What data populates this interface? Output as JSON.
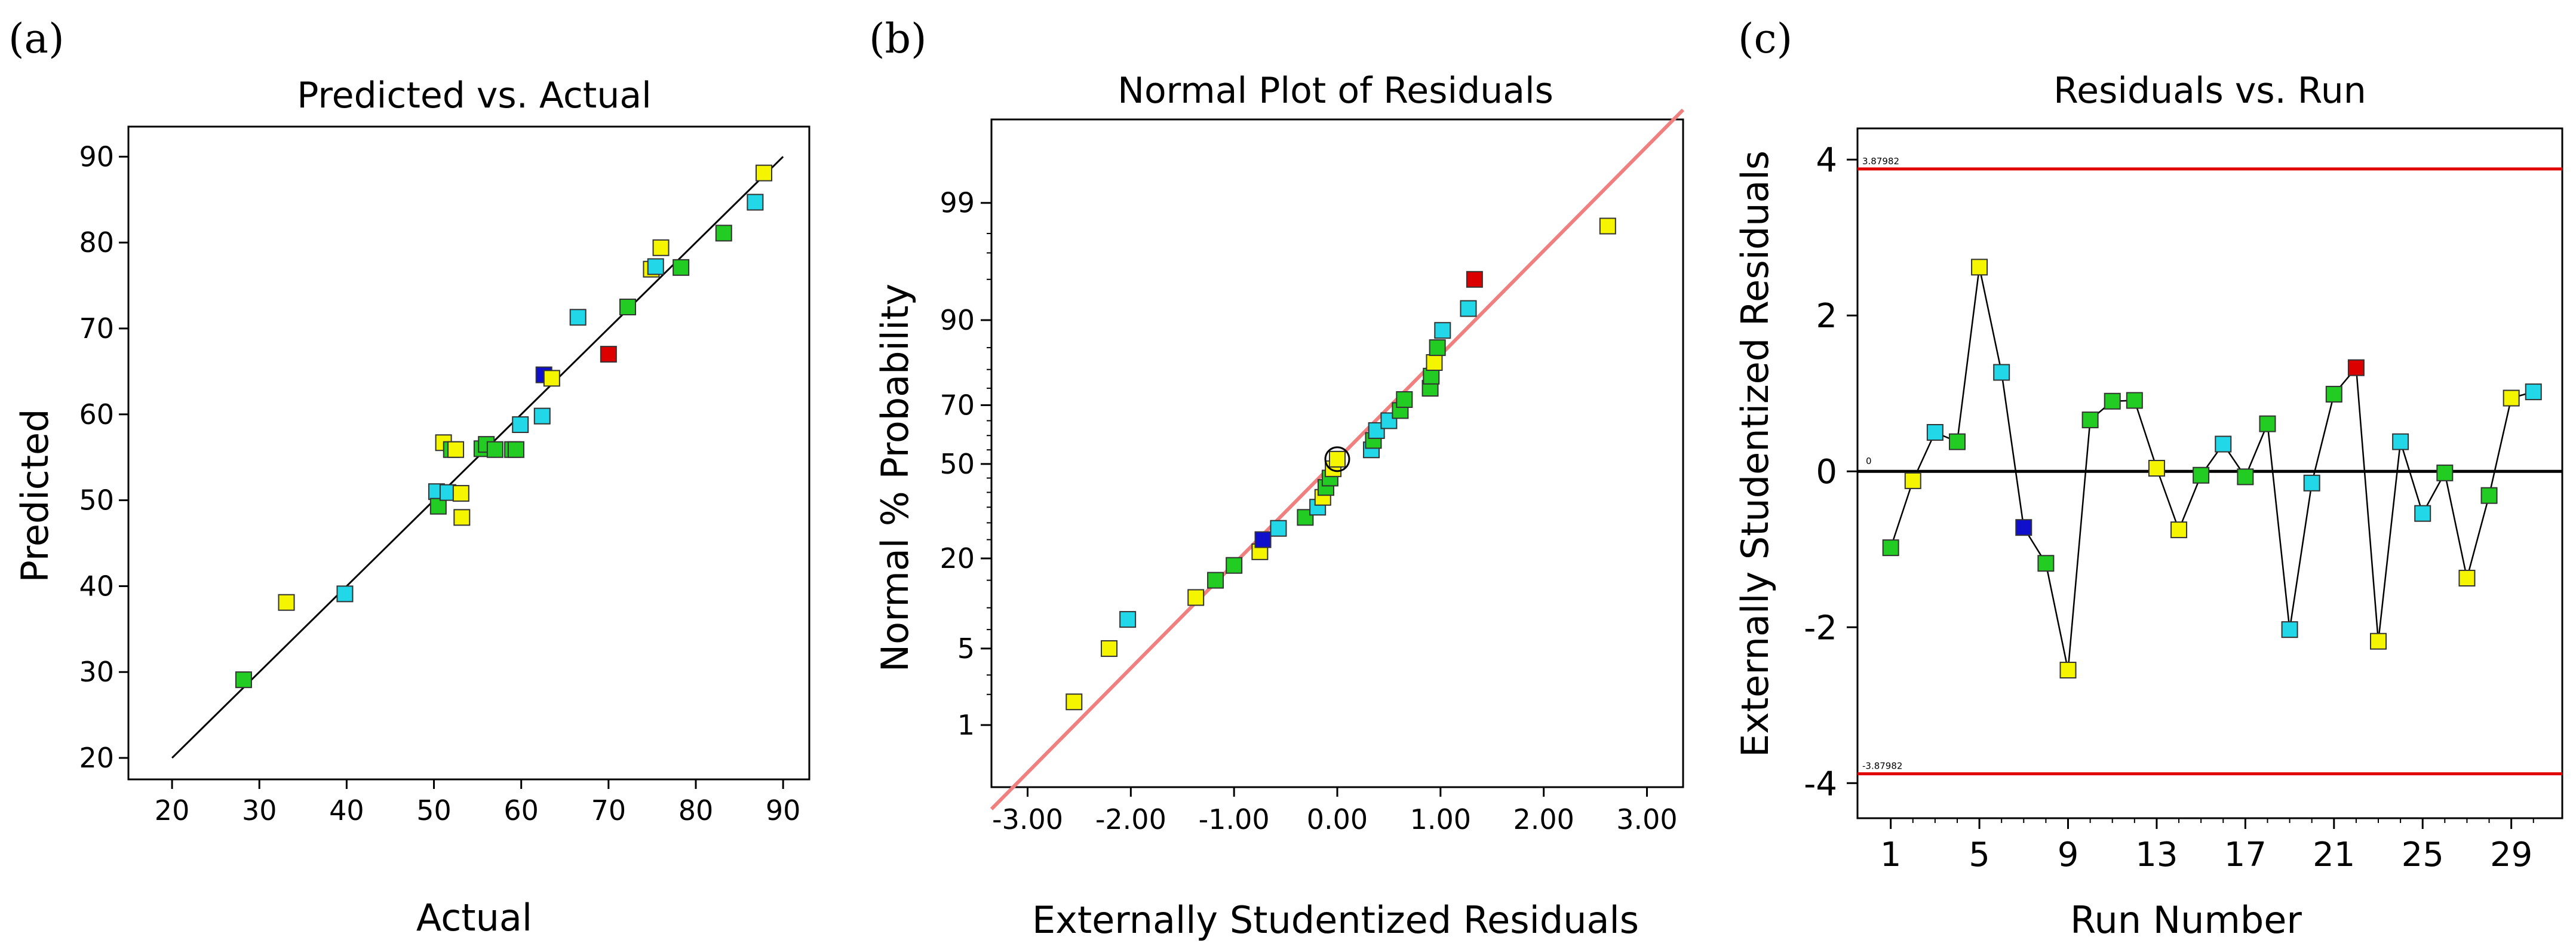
{
  "figure": {
    "panel_a_letter": "(a)",
    "panel_b_letter": "(b)",
    "panel_c_letter": "(c)"
  },
  "colors": {
    "yellow": "#f5f500",
    "cyan": "#22d8e8",
    "green": "#22cc22",
    "red": "#dd0000",
    "blue": "#1010cc",
    "fit_line_b": "#f08080",
    "limit_line_c": "#e00000"
  },
  "chart_data": [
    {
      "id": "a",
      "type": "scatter",
      "title": "Predicted vs. Actual",
      "xlabel": "Actual",
      "ylabel": "Predicted",
      "xlim": [
        15,
        93
      ],
      "ylim": [
        17.5,
        93.5
      ],
      "xticks": [
        20,
        30,
        40,
        50,
        60,
        70,
        80,
        90
      ],
      "yticks": [
        20,
        30,
        40,
        50,
        60,
        70,
        80,
        90
      ],
      "reference_line": [
        [
          20,
          20
        ],
        [
          90,
          90
        ]
      ],
      "points": [
        {
          "x": 28.2,
          "y": 29.1,
          "c": "green"
        },
        {
          "x": 33.1,
          "y": 38.1,
          "c": "yellow"
        },
        {
          "x": 39.8,
          "y": 39.1,
          "c": "cyan"
        },
        {
          "x": 50.3,
          "y": 51.0,
          "c": "cyan"
        },
        {
          "x": 50.5,
          "y": 49.3,
          "c": "green"
        },
        {
          "x": 51.1,
          "y": 56.7,
          "c": "yellow"
        },
        {
          "x": 51.6,
          "y": 50.9,
          "c": "cyan"
        },
        {
          "x": 52.0,
          "y": 55.9,
          "c": "green"
        },
        {
          "x": 52.5,
          "y": 55.9,
          "c": "yellow"
        },
        {
          "x": 53.1,
          "y": 50.8,
          "c": "yellow"
        },
        {
          "x": 53.2,
          "y": 48.0,
          "c": "yellow"
        },
        {
          "x": 55.5,
          "y": 56.0,
          "c": "green"
        },
        {
          "x": 56.0,
          "y": 56.5,
          "c": "green"
        },
        {
          "x": 57.0,
          "y": 55.9,
          "c": "green"
        },
        {
          "x": 59.0,
          "y": 55.9,
          "c": "green"
        },
        {
          "x": 59.4,
          "y": 55.9,
          "c": "green"
        },
        {
          "x": 59.9,
          "y": 58.8,
          "c": "cyan"
        },
        {
          "x": 62.4,
          "y": 59.8,
          "c": "cyan"
        },
        {
          "x": 62.6,
          "y": 64.6,
          "c": "blue"
        },
        {
          "x": 63.5,
          "y": 64.2,
          "c": "yellow"
        },
        {
          "x": 66.5,
          "y": 71.3,
          "c": "cyan"
        },
        {
          "x": 70.0,
          "y": 67.0,
          "c": "red"
        },
        {
          "x": 72.2,
          "y": 72.5,
          "c": "green"
        },
        {
          "x": 74.9,
          "y": 76.9,
          "c": "yellow"
        },
        {
          "x": 75.4,
          "y": 77.2,
          "c": "cyan"
        },
        {
          "x": 76.0,
          "y": 79.4,
          "c": "yellow"
        },
        {
          "x": 78.3,
          "y": 77.1,
          "c": "green"
        },
        {
          "x": 83.2,
          "y": 81.1,
          "c": "green"
        },
        {
          "x": 86.8,
          "y": 84.7,
          "c": "cyan"
        },
        {
          "x": 87.8,
          "y": 88.1,
          "c": "yellow"
        }
      ]
    },
    {
      "id": "b",
      "type": "scatter",
      "title": "Normal Plot of Residuals",
      "xlabel": "Externally Studentized Residuals",
      "ylabel": "Normal % Probability",
      "xlim": [
        -3.35,
        3.35
      ],
      "ylim_z": [
        -2.88,
        3.07
      ],
      "xticks": [
        "-3.00",
        "-2.00",
        "-1.00",
        "0.00",
        "1.00",
        "2.00",
        "3.00"
      ],
      "xtick_values": [
        -3,
        -2,
        -1,
        0,
        1,
        2,
        3
      ],
      "yticks": [
        "1",
        "5",
        "20",
        "50",
        "70",
        "90",
        "99"
      ],
      "ytick_values": [
        1,
        5,
        20,
        50,
        70,
        90,
        99
      ],
      "fit_line_x": [
        -3.35,
        3.35
      ],
      "points": [
        {
          "x": -2.55,
          "p": 1.7,
          "c": "yellow"
        },
        {
          "x": -2.21,
          "p": 5.0,
          "c": "yellow"
        },
        {
          "x": -2.03,
          "p": 8.3,
          "c": "cyan"
        },
        {
          "x": -1.37,
          "p": 11.7,
          "c": "yellow"
        },
        {
          "x": -1.18,
          "p": 15.0,
          "c": "green"
        },
        {
          "x": -1.0,
          "p": 18.3,
          "c": "green"
        },
        {
          "x": -0.75,
          "p": 21.7,
          "c": "yellow"
        },
        {
          "x": -0.72,
          "p": 25.0,
          "c": "blue"
        },
        {
          "x": -0.57,
          "p": 28.3,
          "c": "cyan"
        },
        {
          "x": -0.31,
          "p": 31.7,
          "c": "green"
        },
        {
          "x": -0.19,
          "p": 35.0,
          "c": "cyan"
        },
        {
          "x": -0.14,
          "p": 38.3,
          "c": "yellow"
        },
        {
          "x": -0.11,
          "p": 41.7,
          "c": "green"
        },
        {
          "x": -0.07,
          "p": 45.0,
          "c": "green"
        },
        {
          "x": -0.04,
          "p": 48.3,
          "c": "yellow"
        },
        {
          "x": 0.0,
          "p": 51.7,
          "c": "yellow"
        },
        {
          "x": 0.33,
          "p": 55.0,
          "c": "cyan"
        },
        {
          "x": 0.35,
          "p": 58.3,
          "c": "green"
        },
        {
          "x": 0.38,
          "p": 61.7,
          "c": "cyan"
        },
        {
          "x": 0.5,
          "p": 65.0,
          "c": "cyan"
        },
        {
          "x": 0.61,
          "p": 68.3,
          "c": "green"
        },
        {
          "x": 0.65,
          "p": 71.7,
          "c": "green"
        },
        {
          "x": 0.9,
          "p": 75.0,
          "c": "green"
        },
        {
          "x": 0.91,
          "p": 78.3,
          "c": "green"
        },
        {
          "x": 0.94,
          "p": 81.7,
          "c": "yellow"
        },
        {
          "x": 0.97,
          "p": 85.0,
          "c": "green"
        },
        {
          "x": 1.02,
          "p": 88.3,
          "c": "cyan"
        },
        {
          "x": 1.27,
          "p": 91.7,
          "c": "cyan"
        },
        {
          "x": 1.33,
          "p": 95.0,
          "c": "red"
        },
        {
          "x": 2.62,
          "p": 98.3,
          "c": "yellow"
        }
      ]
    },
    {
      "id": "c",
      "type": "line",
      "title": "Residuals vs. Run",
      "xlabel": "Run Number",
      "ylabel": "Externally Studentized Residuals",
      "xlim": [
        -0.5,
        31.3
      ],
      "ylim": [
        -4.45,
        4.4
      ],
      "xticks": [
        "1",
        "5",
        "9",
        "13",
        "17",
        "21",
        "25",
        "29"
      ],
      "xtick_values": [
        1,
        5,
        9,
        13,
        17,
        21,
        25,
        29
      ],
      "yticks": [
        "-4",
        "-2",
        "0",
        "2",
        "4"
      ],
      "ytick_values": [
        -4,
        -2,
        0,
        2,
        4
      ],
      "upper_limit": 3.87982,
      "lower_limit": -3.87982,
      "upper_limit_label": "3.87982",
      "lower_limit_label": "-3.87982",
      "zero_label": "0",
      "points": [
        {
          "x": 1,
          "y": -0.98,
          "c": "green"
        },
        {
          "x": 2,
          "y": -0.12,
          "c": "yellow"
        },
        {
          "x": 3,
          "y": 0.5,
          "c": "cyan"
        },
        {
          "x": 4,
          "y": 0.38,
          "c": "green"
        },
        {
          "x": 5,
          "y": 2.62,
          "c": "yellow"
        },
        {
          "x": 6,
          "y": 1.27,
          "c": "cyan"
        },
        {
          "x": 7,
          "y": -0.72,
          "c": "blue"
        },
        {
          "x": 8,
          "y": -1.18,
          "c": "green"
        },
        {
          "x": 9,
          "y": -2.55,
          "c": "yellow"
        },
        {
          "x": 10,
          "y": 0.66,
          "c": "green"
        },
        {
          "x": 11,
          "y": 0.9,
          "c": "green"
        },
        {
          "x": 12,
          "y": 0.91,
          "c": "green"
        },
        {
          "x": 13,
          "y": 0.04,
          "c": "yellow"
        },
        {
          "x": 14,
          "y": -0.75,
          "c": "yellow"
        },
        {
          "x": 15,
          "y": -0.05,
          "c": "green"
        },
        {
          "x": 16,
          "y": 0.35,
          "c": "cyan"
        },
        {
          "x": 17,
          "y": -0.07,
          "c": "green"
        },
        {
          "x": 18,
          "y": 0.61,
          "c": "green"
        },
        {
          "x": 19,
          "y": -2.03,
          "c": "cyan"
        },
        {
          "x": 20,
          "y": -0.15,
          "c": "cyan"
        },
        {
          "x": 21,
          "y": 0.99,
          "c": "green"
        },
        {
          "x": 22,
          "y": 1.33,
          "c": "red"
        },
        {
          "x": 23,
          "y": -2.18,
          "c": "yellow"
        },
        {
          "x": 24,
          "y": 0.38,
          "c": "cyan"
        },
        {
          "x": 25,
          "y": -0.54,
          "c": "cyan"
        },
        {
          "x": 26,
          "y": -0.02,
          "c": "green"
        },
        {
          "x": 27,
          "y": -1.37,
          "c": "yellow"
        },
        {
          "x": 28,
          "y": -0.31,
          "c": "green"
        },
        {
          "x": 29,
          "y": 0.94,
          "c": "yellow"
        },
        {
          "x": 30,
          "y": 1.02,
          "c": "cyan"
        }
      ]
    }
  ]
}
